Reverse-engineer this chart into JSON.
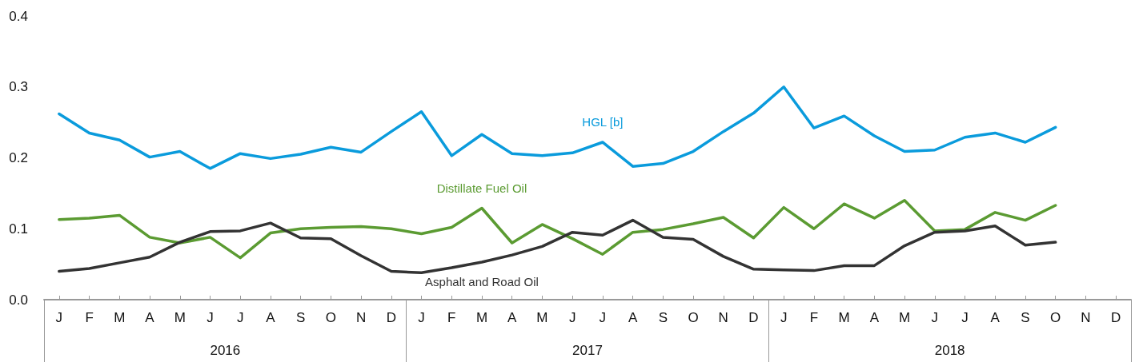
{
  "chart_data": {
    "type": "line",
    "categories": [
      "J",
      "F",
      "M",
      "A",
      "M",
      "J",
      "J",
      "A",
      "S",
      "O",
      "N",
      "D",
      "J",
      "F",
      "M",
      "A",
      "M",
      "J",
      "J",
      "A",
      "S",
      "O",
      "N",
      "D",
      "J",
      "F",
      "M",
      "A",
      "M",
      "J",
      "J",
      "A",
      "S",
      "O",
      "N",
      "D"
    ],
    "annotations": [
      "2016",
      "2017",
      "2018"
    ],
    "series": [
      {
        "name": "HGL [b]",
        "color": "#0a9bdc",
        "values": [
          0.262,
          0.235,
          0.225,
          0.201,
          0.209,
          0.185,
          0.206,
          0.199,
          0.205,
          0.215,
          0.208,
          0.237,
          0.265,
          0.203,
          0.233,
          0.206,
          0.203,
          0.207,
          0.222,
          0.188,
          0.192,
          0.209,
          0.237,
          0.263,
          0.3,
          0.242,
          0.259,
          0.231,
          0.209,
          0.211,
          0.229,
          0.235,
          0.222,
          0.243,
          null,
          null
        ]
      },
      {
        "name": "Distillate Fuel Oil",
        "color": "#5b9b32",
        "values": [
          0.113,
          0.115,
          0.119,
          0.088,
          0.08,
          0.088,
          0.059,
          0.094,
          0.1,
          0.102,
          0.103,
          0.1,
          0.093,
          0.102,
          0.129,
          0.08,
          0.106,
          0.086,
          0.064,
          0.095,
          0.099,
          0.107,
          0.116,
          0.087,
          0.13,
          0.1,
          0.135,
          0.115,
          0.14,
          0.097,
          0.099,
          0.123,
          0.112,
          0.133,
          null,
          null
        ]
      },
      {
        "name": "Asphalt and Road Oil",
        "color": "#333333",
        "values": [
          0.04,
          0.044,
          0.052,
          0.06,
          0.081,
          0.096,
          0.097,
          0.108,
          0.087,
          0.086,
          0.062,
          0.04,
          0.038,
          0.045,
          0.053,
          0.063,
          0.075,
          0.095,
          0.091,
          0.112,
          0.088,
          0.085,
          0.061,
          0.043,
          0.042,
          0.041,
          0.048,
          0.048,
          0.076,
          0.095,
          0.097,
          0.104,
          0.077,
          0.081,
          null,
          null
        ]
      }
    ],
    "ylim": [
      0,
      0.4
    ],
    "yticks": [
      {
        "value": 0,
        "label": "0.0"
      },
      {
        "value": 0.1,
        "label": "0.1"
      },
      {
        "value": 0.2,
        "label": "0.2"
      },
      {
        "value": 0.3,
        "label": "0.3"
      },
      {
        "value": 0.4,
        "label": "0.4"
      }
    ],
    "grid": false,
    "legend": false,
    "marker": "none",
    "line_style": "solid"
  }
}
